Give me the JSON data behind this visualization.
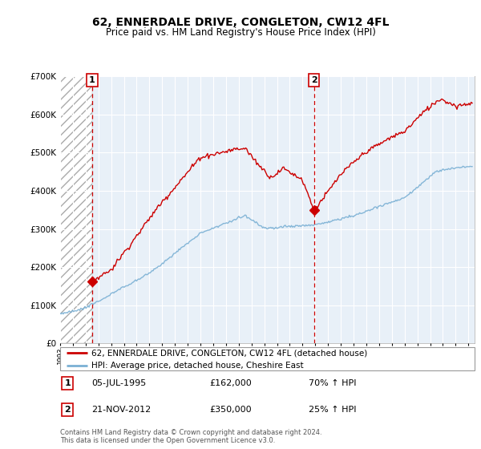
{
  "title": "62, ENNERDALE DRIVE, CONGLETON, CW12 4FL",
  "subtitle": "Price paid vs. HM Land Registry's House Price Index (HPI)",
  "ylim": [
    0,
    700000
  ],
  "xlim_start": 1993.0,
  "xlim_end": 2025.5,
  "purchase1_x": 1995.51,
  "purchase1_y": 162000,
  "purchase2_x": 2012.9,
  "purchase2_y": 350000,
  "purchase1_date": "05-JUL-1995",
  "purchase1_price": "£162,000",
  "purchase1_hpi": "70% ↑ HPI",
  "purchase2_date": "21-NOV-2012",
  "purchase2_price": "£350,000",
  "purchase2_hpi": "25% ↑ HPI",
  "line1_color": "#cc0000",
  "line2_color": "#7ab0d4",
  "marker_color": "#cc0000",
  "vline_color": "#cc0000",
  "chart_bg_color": "#e8f0f8",
  "legend_line1": "62, ENNERDALE DRIVE, CONGLETON, CW12 4FL (detached house)",
  "legend_line2": "HPI: Average price, detached house, Cheshire East",
  "footer": "Contains HM Land Registry data © Crown copyright and database right 2024.\nThis data is licensed under the Open Government Licence v3.0."
}
